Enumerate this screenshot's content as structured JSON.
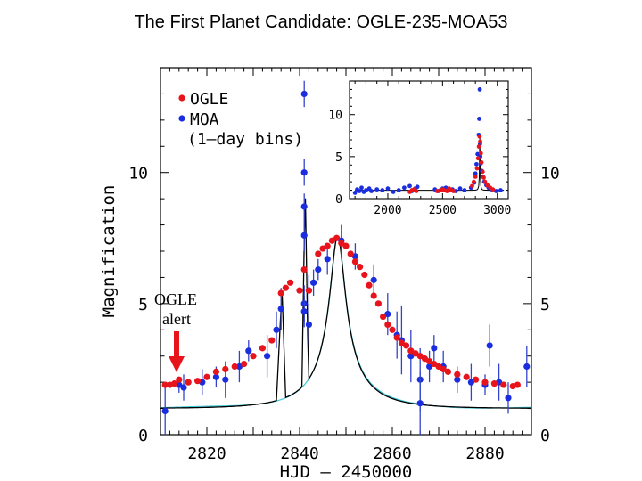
{
  "page_title": "The First Planet Candidate: OGLE-235-MOA53",
  "chart_data": {
    "type": "scatter",
    "title": "The First Planet Candidate: OGLE-235-MOA53",
    "xlabel": "HJD – 2450000",
    "ylabel": "Magnification",
    "xlim": [
      2810,
      2890
    ],
    "ylim": [
      0,
      14
    ],
    "x_ticks": [
      "2820",
      "2840",
      "2860",
      "2880"
    ],
    "y_ticks_left": [
      "0",
      "5",
      "10"
    ],
    "y_ticks_right": [
      "0",
      "5",
      "10"
    ],
    "legend": {
      "position": "top-left",
      "entries": [
        "OGLE",
        "MOA",
        "(1–day bins)"
      ],
      "colors": [
        "#e8141c",
        "#1a2ee0"
      ]
    },
    "colors": {
      "ogle": "#e8141c",
      "moa": "#1a2ee0",
      "model": "#000000",
      "model_alt": "#3fc8d8",
      "errorbar": "#3344cc"
    },
    "annotation": {
      "line1": "OGLE",
      "line2": "alert",
      "x": 2814,
      "arrow_to_y": 2.2
    },
    "series": [
      {
        "name": "OGLE",
        "points": [
          [
            2811,
            1.9
          ],
          [
            2812,
            1.9
          ],
          [
            2813,
            1.95
          ],
          [
            2814,
            2.1
          ],
          [
            2816,
            2.0
          ],
          [
            2818,
            2.05
          ],
          [
            2820,
            2.2
          ],
          [
            2822,
            2.4
          ],
          [
            2824,
            2.5
          ],
          [
            2826,
            2.6
          ],
          [
            2828,
            2.7
          ],
          [
            2830,
            3.0
          ],
          [
            2832,
            3.3
          ],
          [
            2834,
            3.6
          ],
          [
            2836,
            5.4
          ],
          [
            2837,
            5.6
          ],
          [
            2838,
            5.8
          ],
          [
            2840,
            5.5
          ],
          [
            2841,
            6.3
          ],
          [
            2842,
            5.5
          ],
          [
            2844,
            6.9
          ],
          [
            2845,
            7.1
          ],
          [
            2846,
            7.2
          ],
          [
            2847,
            7.4
          ],
          [
            2848,
            7.5
          ],
          [
            2849,
            7.3
          ],
          [
            2850,
            7.2
          ],
          [
            2851,
            6.9
          ],
          [
            2852,
            6.6
          ],
          [
            2853,
            6.4
          ],
          [
            2854,
            6.1
          ],
          [
            2855,
            5.7
          ],
          [
            2856,
            5.3
          ],
          [
            2857,
            5.0
          ],
          [
            2858,
            4.5
          ],
          [
            2859,
            4.2
          ],
          [
            2860,
            4.0
          ],
          [
            2861,
            3.7
          ],
          [
            2862,
            3.5
          ],
          [
            2863,
            3.4
          ],
          [
            2864,
            3.2
          ],
          [
            2865,
            3.1
          ],
          [
            2866,
            3.0
          ],
          [
            2867,
            2.9
          ],
          [
            2868,
            2.8
          ],
          [
            2869,
            2.7
          ],
          [
            2870,
            2.6
          ],
          [
            2871,
            2.5
          ],
          [
            2872,
            2.4
          ],
          [
            2874,
            2.3
          ],
          [
            2876,
            2.2
          ],
          [
            2878,
            2.1
          ],
          [
            2880,
            2.0
          ],
          [
            2882,
            1.95
          ],
          [
            2884,
            1.9
          ],
          [
            2886,
            1.85
          ],
          [
            2887,
            1.9
          ]
        ]
      },
      {
        "name": "MOA",
        "points": [
          [
            2811,
            0.9,
            0.9
          ],
          [
            2814,
            1.9,
            0.3
          ],
          [
            2815,
            1.8,
            0.5
          ],
          [
            2819,
            2.0,
            0.5
          ],
          [
            2822,
            2.2,
            0.4
          ],
          [
            2824,
            2.1,
            0.7
          ],
          [
            2827,
            2.6,
            0.6
          ],
          [
            2829,
            3.2,
            0.4
          ],
          [
            2833,
            3.0,
            0.8
          ],
          [
            2835,
            4.0,
            0.7
          ],
          [
            2836,
            4.8,
            0.8
          ],
          [
            2841,
            13.0,
            0.5
          ],
          [
            2841,
            10.0,
            0.5
          ],
          [
            2841,
            8.7,
            0.5
          ],
          [
            2841,
            7.6,
            0.6
          ],
          [
            2842,
            5.5,
            0.6
          ],
          [
            2841,
            5.0,
            0.7
          ],
          [
            2841,
            4.7,
            0.6
          ],
          [
            2842,
            4.2,
            0.8
          ],
          [
            2843,
            5.8,
            0.5
          ],
          [
            2844,
            6.3,
            0.4
          ],
          [
            2846,
            6.7,
            0.6
          ],
          [
            2849,
            7.4,
            0.6
          ],
          [
            2852,
            6.8,
            0.5
          ],
          [
            2856,
            5.9,
            0.6
          ],
          [
            2859,
            4.6,
            0.8
          ],
          [
            2861,
            3.8,
            0.9
          ],
          [
            2862,
            3.6,
            1.3
          ],
          [
            2864,
            3.0,
            1.0
          ],
          [
            2866,
            2.1,
            1.2
          ],
          [
            2866,
            1.2,
            1.2
          ],
          [
            2868,
            2.6,
            0.6
          ],
          [
            2869,
            3.3,
            0.5
          ],
          [
            2871,
            2.6,
            0.6
          ],
          [
            2874,
            2.1,
            0.5
          ],
          [
            2877,
            2.0,
            0.7
          ],
          [
            2880,
            1.9,
            0.4
          ],
          [
            2881,
            3.4,
            0.8
          ],
          [
            2883,
            2.0,
            0.7
          ],
          [
            2885,
            1.4,
            0.6
          ],
          [
            2889,
            2.6,
            0.8
          ]
        ]
      }
    ],
    "inset": {
      "xlim": [
        1650,
        3100
      ],
      "ylim": [
        0,
        14
      ],
      "x_ticks": [
        "2000",
        "2500",
        "3000"
      ],
      "y_ticks": [
        "0",
        "5",
        "10"
      ],
      "moa_points": [
        [
          1700,
          0.7
        ],
        [
          1720,
          1.1
        ],
        [
          1740,
          0.9
        ],
        [
          1760,
          1.3
        ],
        [
          1780,
          0.8
        ],
        [
          1800,
          1.0
        ],
        [
          1830,
          1.2
        ],
        [
          1850,
          0.9
        ],
        [
          1900,
          1.1
        ],
        [
          1950,
          1.0
        ],
        [
          2000,
          1.2
        ],
        [
          2050,
          0.8
        ],
        [
          2100,
          1.0
        ],
        [
          2150,
          1.3
        ],
        [
          2200,
          1.5
        ],
        [
          2220,
          0.9
        ],
        [
          2250,
          1.2
        ],
        [
          2270,
          1.4
        ],
        [
          2430,
          1.1
        ],
        [
          2460,
          0.9
        ],
        [
          2500,
          1.2
        ],
        [
          2530,
          1.3
        ],
        [
          2560,
          1.0
        ],
        [
          2590,
          1.1
        ],
        [
          2620,
          0.9
        ],
        [
          2660,
          1.2
        ],
        [
          2700,
          1.0
        ],
        [
          2760,
          1.3
        ],
        [
          2790,
          1.9
        ],
        [
          2800,
          3.0
        ],
        [
          2810,
          4.1
        ],
        [
          2820,
          5.3
        ],
        [
          2830,
          7.6
        ],
        [
          2835,
          9.5
        ],
        [
          2840,
          13.0
        ],
        [
          2842,
          6.5
        ],
        [
          2845,
          5.0
        ],
        [
          2850,
          4.2
        ],
        [
          2860,
          3.3
        ],
        [
          2870,
          2.6
        ],
        [
          2880,
          2.0
        ],
        [
          2900,
          1.6
        ],
        [
          2920,
          1.3
        ],
        [
          2950,
          1.1
        ],
        [
          2990,
          0.9
        ],
        [
          3030,
          1.0
        ]
      ],
      "ogle_points": [
        [
          2200,
          0.8
        ],
        [
          2220,
          1.0
        ],
        [
          2240,
          1.1
        ],
        [
          2260,
          0.9
        ],
        [
          2450,
          0.9
        ],
        [
          2480,
          1.0
        ],
        [
          2500,
          1.1
        ],
        [
          2520,
          1.0
        ],
        [
          2540,
          0.9
        ],
        [
          2560,
          1.2
        ],
        [
          2580,
          1.0
        ],
        [
          2600,
          0.9
        ],
        [
          2770,
          1.5
        ],
        [
          2785,
          2.0
        ],
        [
          2800,
          2.6
        ],
        [
          2815,
          3.6
        ],
        [
          2825,
          4.8
        ],
        [
          2832,
          6.2
        ],
        [
          2838,
          7.4
        ],
        [
          2844,
          6.8
        ],
        [
          2850,
          5.4
        ],
        [
          2856,
          4.3
        ],
        [
          2866,
          3.2
        ],
        [
          2876,
          2.5
        ],
        [
          2888,
          2.0
        ],
        [
          2910,
          1.6
        ],
        [
          2935,
          1.3
        ],
        [
          2960,
          1.1
        ]
      ]
    }
  }
}
